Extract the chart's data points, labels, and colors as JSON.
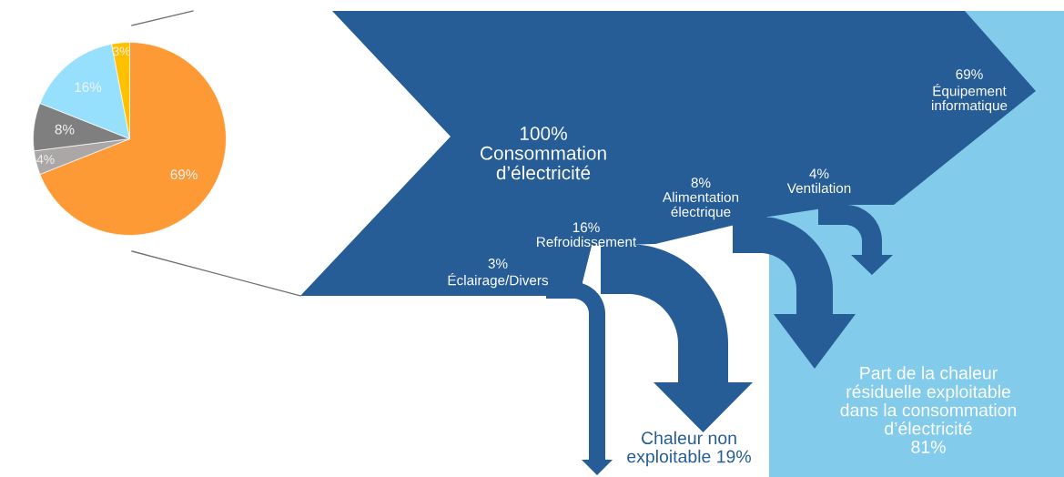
{
  "chart_data": [
    {
      "type": "pie",
      "categories": [
        null,
        null,
        null,
        null,
        null
      ],
      "values": [
        69,
        4,
        8,
        16,
        3
      ],
      "colors": [
        "#fd9a35",
        "#aba7a6",
        "#7f7f7f",
        "#96e0fd",
        "#ffc000"
      ],
      "value_labels": [
        "69%",
        "4%",
        "8%",
        "16%",
        "3%"
      ]
    },
    {
      "type": "other",
      "annotations": [
        "100%\nConsommation\nd’électricité",
        "69%\nÉquipement\ninformatique",
        "8%\nAlimentation\nélectrique",
        "4%\nVentilation",
        "16%\nRefroidissement",
        "3%\nÉclairage/Divers",
        "Part de la chaleur\nrésiduelle exploitable\ndans la consommation\nd’électricité\n81%",
        "Chaleur non\nexploitable 19%"
      ]
    }
  ]
}
